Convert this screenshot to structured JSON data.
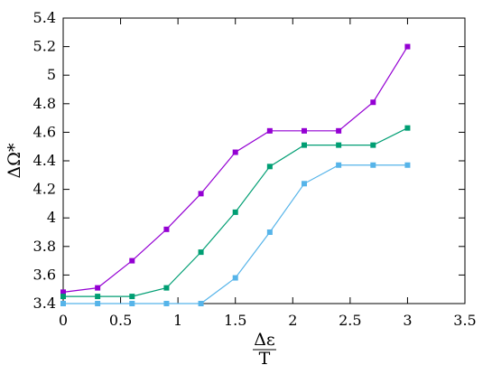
{
  "chart_data": {
    "type": "line",
    "xlabel": {
      "numerator": "Δε",
      "denominator": "T"
    },
    "ylabel": "ΔΩ*",
    "xlim": [
      0,
      3.5
    ],
    "ylim": [
      3.4,
      5.4
    ],
    "xticks": [
      "0",
      "0.5",
      "1",
      "1.5",
      "2",
      "2.5",
      "3",
      "3.5"
    ],
    "yticks": [
      "3.4",
      "3.6",
      "3.8",
      "4",
      "4.2",
      "4.4",
      "4.6",
      "4.8",
      "5",
      "5.2",
      "5.4"
    ],
    "grid": false,
    "legend": "none",
    "series": [
      {
        "color": "#9400d3",
        "x": [
          0,
          0.3,
          0.6,
          0.9,
          1.2,
          1.5,
          1.8,
          2.1,
          2.4,
          2.7,
          3.0
        ],
        "y": [
          3.48,
          3.51,
          3.7,
          3.92,
          4.17,
          4.46,
          4.61,
          4.61,
          4.61,
          4.81,
          5.2
        ]
      },
      {
        "color": "#009e73",
        "x": [
          0,
          0.3,
          0.6,
          0.9,
          1.2,
          1.5,
          1.8,
          2.1,
          2.4,
          2.7,
          3.0
        ],
        "y": [
          3.45,
          3.45,
          3.45,
          3.51,
          3.76,
          4.04,
          4.36,
          4.51,
          4.51,
          4.51,
          4.63
        ]
      },
      {
        "color": "#56b4e9",
        "x": [
          0,
          0.3,
          0.6,
          0.9,
          1.2,
          1.5,
          1.8,
          2.1,
          2.4,
          2.7,
          3.0
        ],
        "y": [
          3.4,
          3.4,
          3.4,
          3.4,
          3.4,
          3.58,
          3.9,
          4.24,
          4.37,
          4.37,
          4.37
        ]
      }
    ]
  }
}
